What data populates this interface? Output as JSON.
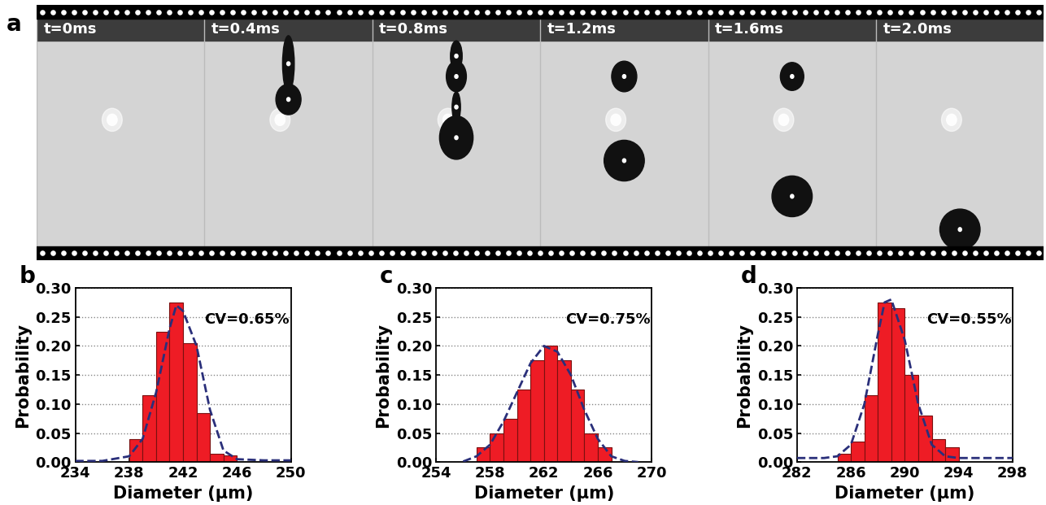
{
  "image_panel": {
    "label": "a",
    "frames": [
      "t=0ms",
      "t=0.4ms",
      "t=0.8ms",
      "t=1.2ms",
      "t=1.6ms",
      "t=2.0ms"
    ]
  },
  "chart_data": [
    {
      "type": "histogram",
      "title": "b",
      "annotation": "CV=0.65%",
      "x_label": "Diameter (μm)",
      "y_label": "Probability",
      "bins": [
        238,
        239,
        240,
        241,
        242,
        243,
        244,
        245,
        246
      ],
      "values": [
        0.04,
        0.115,
        0.225,
        0.275,
        0.205,
        0.085,
        0.015,
        0.012
      ],
      "color": "#ee1c25",
      "fit": {
        "type": "line",
        "line_style": "dashed",
        "color": "#2a2f7a",
        "x": [
          234,
          236,
          238,
          239,
          240,
          241,
          241.5,
          242,
          243,
          244,
          245,
          246,
          248,
          250
        ],
        "values": [
          0.002,
          0.002,
          0.01,
          0.04,
          0.12,
          0.23,
          0.27,
          0.26,
          0.2,
          0.09,
          0.02,
          0.005,
          0.003,
          0.003
        ]
      },
      "xlim": [
        234,
        250
      ],
      "xticks": [
        234,
        238,
        242,
        246,
        250
      ],
      "ylim": [
        0.0,
        0.3
      ],
      "yticks": [
        {
          "value": 0.0,
          "label": "0.00"
        },
        {
          "value": 0.05,
          "label": "0.05"
        },
        {
          "value": 0.1,
          "label": "0.10"
        },
        {
          "value": 0.15,
          "label": "0.15"
        },
        {
          "value": 0.2,
          "label": "0.20"
        },
        {
          "value": 0.25,
          "label": "0.25"
        },
        {
          "value": 0.3,
          "label": "0.30"
        }
      ],
      "grid": true
    },
    {
      "type": "histogram",
      "title": "c",
      "annotation": "CV=0.75%",
      "x_label": "Diameter (μm)",
      "y_label": "Probability",
      "bins": [
        257,
        258,
        259,
        260,
        261,
        262,
        263,
        264,
        265,
        266,
        267
      ],
      "values": [
        0.025,
        0.05,
        0.075,
        0.125,
        0.175,
        0.2,
        0.175,
        0.125,
        0.05,
        0.025
      ],
      "color": "#ee1c25",
      "fit": {
        "type": "line",
        "line_style": "dashed",
        "color": "#2a2f7a",
        "x": [
          256,
          257,
          258,
          259,
          260,
          261,
          262,
          263,
          264,
          265,
          266,
          267,
          268,
          269
        ],
        "values": [
          0.001,
          0.01,
          0.03,
          0.07,
          0.12,
          0.17,
          0.2,
          0.19,
          0.15,
          0.09,
          0.04,
          0.01,
          0.002,
          0.0
        ]
      },
      "xlim": [
        254,
        270
      ],
      "xticks": [
        254,
        258,
        262,
        266,
        270
      ],
      "ylim": [
        0.0,
        0.3
      ],
      "yticks": [
        {
          "value": 0.0,
          "label": "0.00"
        },
        {
          "value": 0.05,
          "label": "0.05"
        },
        {
          "value": 0.1,
          "label": "0.10"
        },
        {
          "value": 0.15,
          "label": "0.15"
        },
        {
          "value": 0.2,
          "label": "0.20"
        },
        {
          "value": 0.25,
          "label": "0.25"
        },
        {
          "value": 0.3,
          "label": "0.30"
        }
      ],
      "grid": true
    },
    {
      "type": "histogram",
      "title": "d",
      "annotation": "CV=0.55%",
      "x_label": "Diameter (μm)",
      "y_label": "Probability",
      "bins": [
        285,
        286,
        287,
        288,
        289,
        290,
        291,
        292,
        293,
        294
      ],
      "values": [
        0.015,
        0.035,
        0.115,
        0.275,
        0.265,
        0.15,
        0.08,
        0.04,
        0.025
      ],
      "color": "#ee1c25",
      "fit": {
        "type": "line",
        "line_style": "dashed",
        "color": "#2a2f7a",
        "x": [
          282,
          284,
          285,
          286,
          287,
          288,
          288.5,
          289,
          290,
          291,
          292,
          293,
          294,
          296,
          298
        ],
        "values": [
          0.007,
          0.007,
          0.01,
          0.03,
          0.1,
          0.22,
          0.275,
          0.28,
          0.21,
          0.1,
          0.03,
          0.01,
          0.007,
          0.007,
          0.007
        ]
      },
      "xlim": [
        282,
        298
      ],
      "xticks": [
        282,
        286,
        290,
        294,
        298
      ],
      "ylim": [
        0.0,
        0.3
      ],
      "yticks": [
        {
          "value": 0.0,
          "label": "0.00"
        },
        {
          "value": 0.05,
          "label": "0.05"
        },
        {
          "value": 0.1,
          "label": "0.10"
        },
        {
          "value": 0.15,
          "label": "0.15"
        },
        {
          "value": 0.2,
          "label": "0.20"
        },
        {
          "value": 0.25,
          "label": "0.25"
        },
        {
          "value": 0.3,
          "label": "0.30"
        }
      ],
      "grid": true
    }
  ]
}
